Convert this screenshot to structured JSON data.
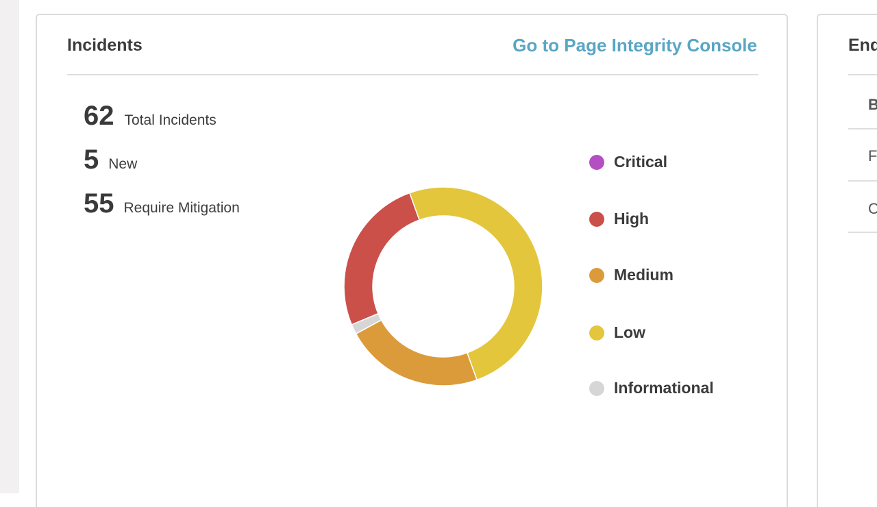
{
  "incidents_card": {
    "title": "Incidents",
    "link_label": "Go to Page Integrity Console",
    "stats": [
      {
        "value": "62",
        "label": "Total Incidents"
      },
      {
        "value": "5",
        "label": "New"
      },
      {
        "value": "55",
        "label": "Require Mitigation"
      }
    ],
    "legend": [
      {
        "label": "Critical",
        "color": "#b44fc2"
      },
      {
        "label": "High",
        "color": "#cb504a"
      },
      {
        "label": "Medium",
        "color": "#db9b3b"
      },
      {
        "label": "Low",
        "color": "#e3c63b"
      },
      {
        "label": "Informational",
        "color": "#d6d6d6"
      }
    ]
  },
  "chart_data": {
    "type": "pie",
    "style": "donut",
    "categories": [
      "Critical",
      "High",
      "Medium",
      "Low",
      "Informational"
    ],
    "values": [
      0,
      16,
      14,
      31,
      1
    ],
    "colors": [
      "#b44fc2",
      "#cb504a",
      "#db9b3b",
      "#e3c63b",
      "#d6d6d6"
    ],
    "legend_position": "right"
  },
  "side_card": {
    "title": "End",
    "rows": [
      "B",
      "F",
      "C"
    ]
  }
}
